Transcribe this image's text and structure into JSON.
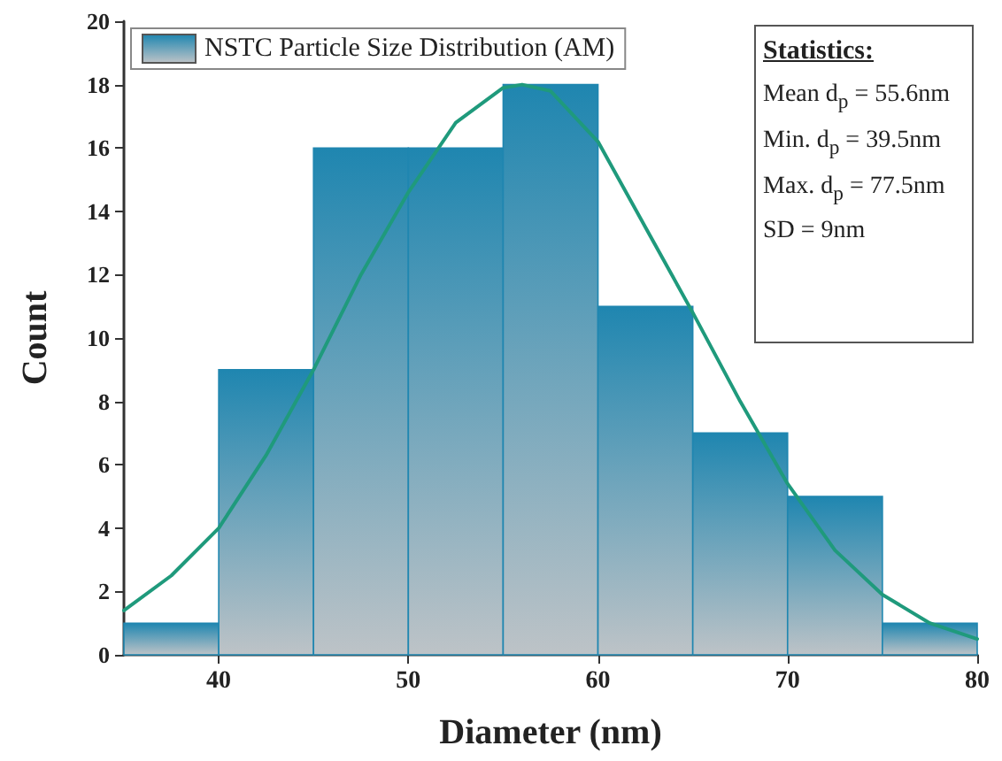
{
  "chart_data": {
    "type": "histogram",
    "xlabel": "Diameter (nm)",
    "ylabel": "Count",
    "bins": [
      35,
      40,
      45,
      50,
      55,
      60,
      65,
      70,
      75,
      80
    ],
    "series": [
      {
        "name": "NSTC Particle Size Distribution (AM)",
        "color": "#1f86b0",
        "values": [
          1,
          9,
          16,
          16,
          18,
          11,
          7,
          5,
          1
        ]
      },
      {
        "type": "line",
        "color": "#1f9a7c",
        "x": [
          35,
          37.5,
          40,
          42.5,
          45,
          47.5,
          50,
          52.5,
          55,
          56,
          57.5,
          60,
          62.5,
          65,
          67.5,
          70,
          72.5,
          75,
          77.5,
          80
        ],
        "values": [
          1.4,
          2.5,
          4.0,
          6.3,
          9,
          12,
          14.6,
          16.8,
          17.9,
          18,
          17.8,
          16.2,
          13.5,
          10.8,
          8.0,
          5.4,
          3.3,
          1.9,
          1.0,
          0.5
        ]
      }
    ],
    "xlim": [
      35,
      80
    ],
    "xticks": [
      40,
      50,
      60,
      70,
      80
    ],
    "ylim": [
      0,
      20
    ],
    "yticks": [
      0,
      2,
      4,
      6,
      8,
      10,
      12,
      14,
      16,
      18,
      20
    ],
    "legend": "top left",
    "grid": false,
    "marker": "none",
    "line_style": "solid",
    "annotations": [
      "Statistics:",
      "Mean d$_{p}$ = 55.6nm",
      "Min. d$_{p}$ = 39.5nm",
      "Max. d$_{p}$ = 77.5nm",
      "SD = 9nm"
    ]
  }
}
